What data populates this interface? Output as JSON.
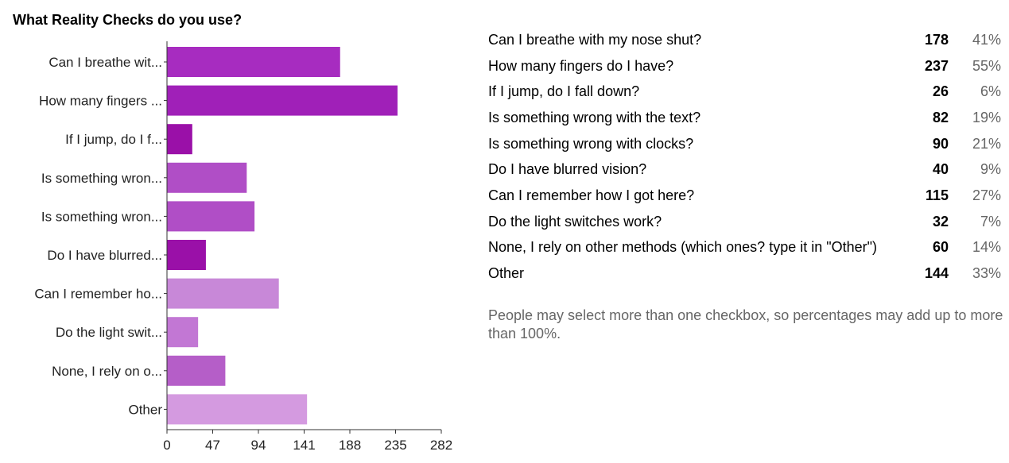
{
  "chart_data": {
    "type": "bar",
    "orientation": "horizontal",
    "title": "What Reality Checks do you use?",
    "categories": [
      "Can I breathe wit...",
      "How many fingers ...",
      "If I jump, do I f...",
      "Is something wron...",
      "Is something wron...",
      "Do I have blurred...",
      "Can I remember ho...",
      "Do the light swit...",
      "None, I rely on o...",
      "Other"
    ],
    "values": [
      178,
      237,
      26,
      82,
      90,
      40,
      115,
      32,
      60,
      144
    ],
    "colors": [
      "#a72cc0",
      "#a020b8",
      "#9a10a8",
      "#b04ec6",
      "#b04ec6",
      "#9a10a8",
      "#c888d8",
      "#c277d4",
      "#b55ec8",
      "#d49ae0"
    ],
    "xlim": [
      0,
      282
    ],
    "xticks": [
      "0",
      "47",
      "94",
      "141",
      "188",
      "235",
      "282"
    ],
    "grid": false,
    "legend": "none"
  },
  "results": [
    {
      "label": "Can I breathe with my nose shut?",
      "count": "178",
      "percent": "41%"
    },
    {
      "label": "How many fingers do I have?",
      "count": "237",
      "percent": "55%"
    },
    {
      "label": "If I jump, do I fall down?",
      "count": "26",
      "percent": "6%"
    },
    {
      "label": "Is something wrong with the text?",
      "count": "82",
      "percent": "19%"
    },
    {
      "label": "Is something wrong with clocks?",
      "count": "90",
      "percent": "21%"
    },
    {
      "label": "Do I have blurred vision?",
      "count": "40",
      "percent": "9%"
    },
    {
      "label": "Can I remember how I got here?",
      "count": "115",
      "percent": "27%"
    },
    {
      "label": "Do the light switches work?",
      "count": "32",
      "percent": "7%"
    },
    {
      "label": "None, I rely on other methods (which ones? type it in \"Other\")",
      "count": "60",
      "percent": "14%"
    },
    {
      "label": "Other",
      "count": "144",
      "percent": "33%"
    }
  ],
  "footnote": "People may select more than one checkbox, so percentages may add up to more than 100%."
}
